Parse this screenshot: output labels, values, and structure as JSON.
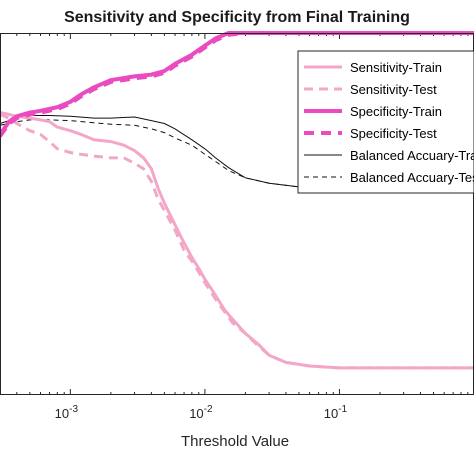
{
  "chart_data": {
    "type": "line",
    "title": "Sensitivity and Specificity from Final Training",
    "xlabel": "Threshold Value",
    "ylabel": "",
    "xscale": "log",
    "xlim": [
      0.0003,
      1
    ],
    "ylim": [
      0,
      1
    ],
    "x_ticks": [
      {
        "value": 0.001,
        "base": "10",
        "exp": "-3"
      },
      {
        "value": 0.01,
        "base": "10",
        "exp": "-2"
      },
      {
        "value": 0.1,
        "base": "10",
        "exp": "-1"
      }
    ],
    "legend_position": "top-right",
    "series": [
      {
        "name": "Sensitivity-Train",
        "color": "#f4a6c8",
        "width": 3,
        "dash": "",
        "x": [
          0.0003,
          0.00035,
          0.0004,
          0.0005,
          0.0006,
          0.0007,
          0.0008,
          0.001,
          0.0012,
          0.0015,
          0.002,
          0.0025,
          0.003,
          0.0035,
          0.004,
          0.0045,
          0.005,
          0.006,
          0.007,
          0.008,
          0.009,
          0.01,
          0.012,
          0.014,
          0.016,
          0.02,
          0.025,
          0.03,
          0.04,
          0.06,
          0.1,
          0.2,
          0.5,
          1
        ],
        "y": [
          0.78,
          0.775,
          0.77,
          0.765,
          0.76,
          0.755,
          0.74,
          0.73,
          0.72,
          0.705,
          0.7,
          0.69,
          0.675,
          0.655,
          0.625,
          0.57,
          0.53,
          0.47,
          0.42,
          0.38,
          0.35,
          0.32,
          0.275,
          0.235,
          0.21,
          0.17,
          0.14,
          0.11,
          0.09,
          0.08,
          0.075,
          0.075,
          0.075,
          0.075
        ]
      },
      {
        "name": "Sensitivity-Test",
        "color": "#f4a6c8",
        "width": 3,
        "dash": "9,6",
        "x": [
          0.0003,
          0.00035,
          0.0004,
          0.0005,
          0.0006,
          0.0007,
          0.0008,
          0.001,
          0.0012,
          0.0015,
          0.002,
          0.0025,
          0.003,
          0.0035,
          0.004,
          0.0045,
          0.005,
          0.006,
          0.007,
          0.008,
          0.009,
          0.01,
          0.012,
          0.014,
          0.016,
          0.02,
          0.025,
          0.03,
          0.04,
          0.06,
          0.1,
          0.2,
          0.5,
          1
        ],
        "y": [
          0.775,
          0.765,
          0.75,
          0.73,
          0.72,
          0.7,
          0.68,
          0.67,
          0.665,
          0.66,
          0.655,
          0.655,
          0.64,
          0.625,
          0.59,
          0.54,
          0.51,
          0.455,
          0.4,
          0.37,
          0.34,
          0.31,
          0.265,
          0.23,
          0.2,
          0.17,
          0.135,
          0.11,
          0.09,
          0.08,
          0.075,
          0.075,
          0.075,
          0.075
        ]
      },
      {
        "name": "Specificity-Train",
        "color": "#ea4bc0",
        "width": 4,
        "dash": "",
        "x": [
          0.0003,
          0.00035,
          0.0004,
          0.0005,
          0.0006,
          0.0008,
          0.001,
          0.0012,
          0.0015,
          0.002,
          0.003,
          0.004,
          0.005,
          0.006,
          0.008,
          0.01,
          0.012,
          0.015,
          0.02,
          0.03,
          0.05,
          0.1,
          0.3,
          1
        ],
        "y": [
          0.72,
          0.755,
          0.77,
          0.78,
          0.785,
          0.795,
          0.81,
          0.83,
          0.85,
          0.87,
          0.88,
          0.885,
          0.895,
          0.915,
          0.94,
          0.965,
          0.985,
          1.0,
          1.0,
          1.0,
          1.0,
          1.0,
          1.0,
          1.0
        ]
      },
      {
        "name": "Specificity-Test",
        "color": "#ea4bc0",
        "width": 4,
        "dash": "10,7",
        "x": [
          0.0003,
          0.00035,
          0.0004,
          0.0005,
          0.0006,
          0.0008,
          0.001,
          0.0012,
          0.0015,
          0.002,
          0.003,
          0.004,
          0.005,
          0.006,
          0.008,
          0.01,
          0.012,
          0.015,
          0.02,
          0.03,
          0.05,
          0.1,
          0.3,
          1
        ],
        "y": [
          0.715,
          0.75,
          0.765,
          0.775,
          0.78,
          0.79,
          0.805,
          0.825,
          0.845,
          0.865,
          0.875,
          0.88,
          0.89,
          0.91,
          0.935,
          0.96,
          0.98,
          0.995,
          1.0,
          1.0,
          1.0,
          1.0,
          1.0,
          1.0
        ]
      },
      {
        "name": "Balanced Accuary-Train",
        "color": "#111111",
        "width": 1,
        "dash": "",
        "x": [
          0.0003,
          0.0004,
          0.0005,
          0.0007,
          0.001,
          0.0015,
          0.002,
          0.003,
          0.004,
          0.005,
          0.006,
          0.008,
          0.01,
          0.012,
          0.015,
          0.02,
          0.03,
          0.05,
          0.1,
          0.2,
          0.5,
          1
        ],
        "y": [
          0.75,
          0.765,
          0.772,
          0.772,
          0.77,
          0.765,
          0.765,
          0.768,
          0.758,
          0.75,
          0.735,
          0.705,
          0.68,
          0.655,
          0.628,
          0.6,
          0.585,
          0.575,
          0.572,
          0.572,
          0.572,
          0.572
        ]
      },
      {
        "name": "Balanced Accuary-Test",
        "color": "#111111",
        "width": 1,
        "dash": "5,4",
        "x": [
          0.0003,
          0.0004,
          0.0005,
          0.0007,
          0.001,
          0.0015,
          0.002,
          0.003,
          0.004,
          0.005,
          0.006,
          0.008,
          0.01,
          0.012,
          0.015,
          0.02,
          0.03,
          0.05,
          0.1,
          0.2,
          0.5,
          1
        ],
        "y": [
          0.745,
          0.755,
          0.76,
          0.76,
          0.758,
          0.752,
          0.748,
          0.745,
          0.735,
          0.725,
          0.71,
          0.69,
          0.665,
          0.645,
          0.62,
          0.6,
          0.585,
          0.575,
          0.572,
          0.572,
          0.572,
          0.572
        ]
      }
    ]
  }
}
